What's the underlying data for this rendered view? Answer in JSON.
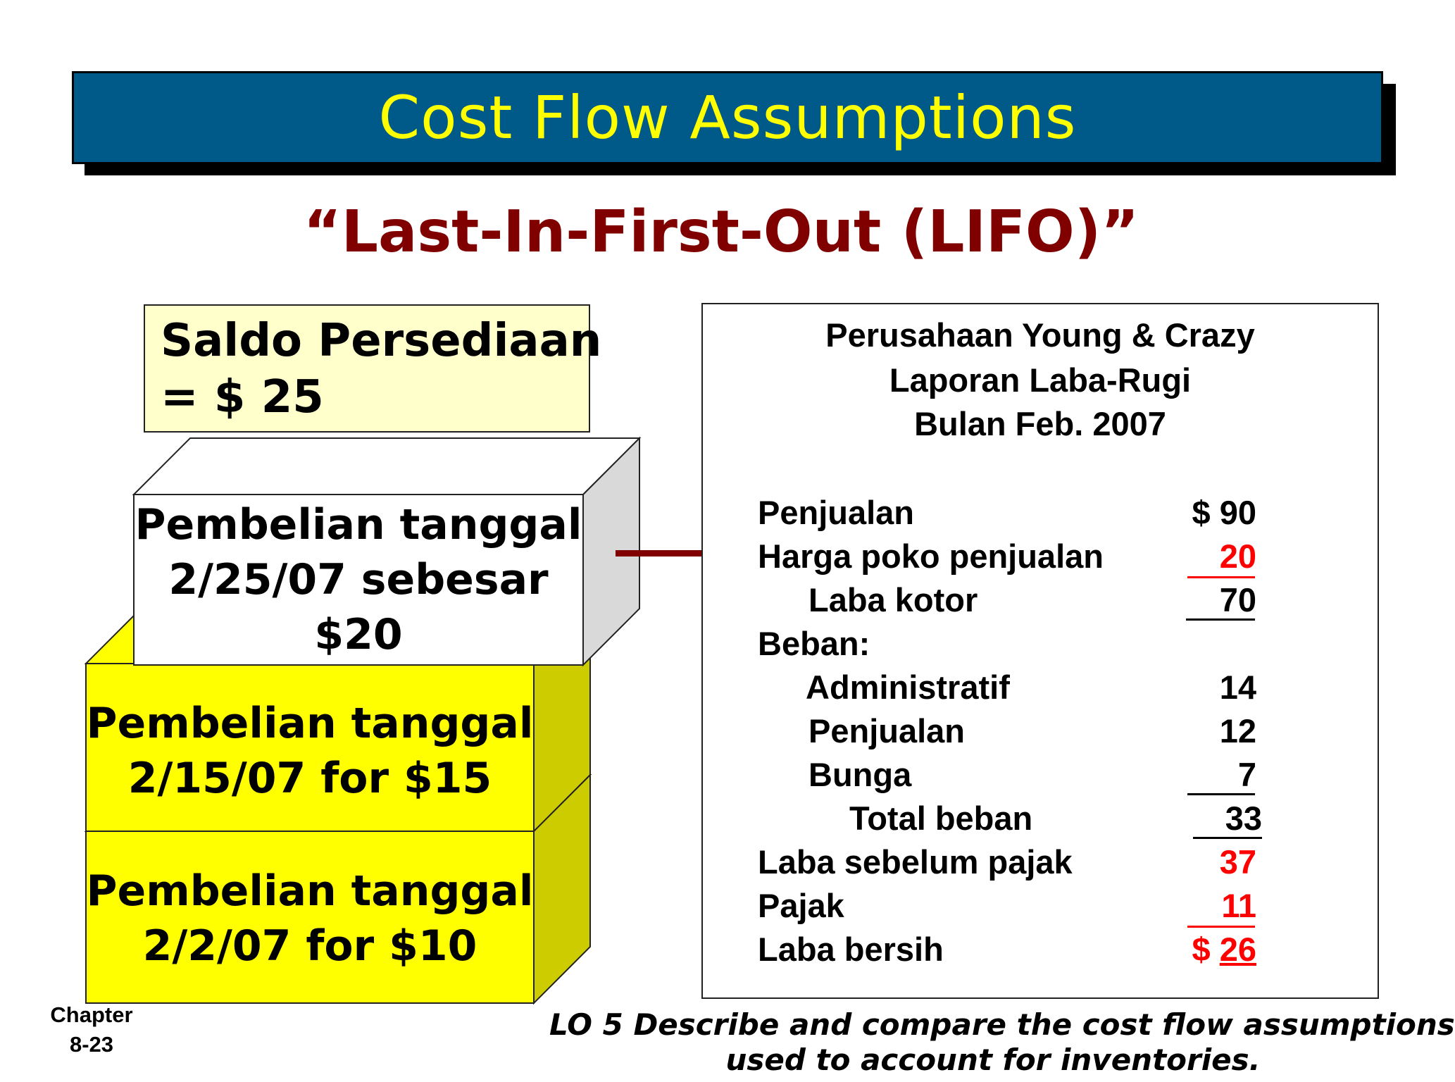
{
  "title": "Cost Flow Assumptions",
  "subtitle": "“Last-In-First-Out (LIFO)”",
  "inventory_balance": {
    "line1": "Saldo Persediaan",
    "line2": "= $ 25"
  },
  "purchases": [
    {
      "line1": "Pembelian tanggal",
      "line2": "2/25/07 sebesar",
      "line3": "$20"
    },
    {
      "line1": "Pembelian tanggal",
      "line2": "2/15/07 for $15"
    },
    {
      "line1": "Pembelian tanggal",
      "line2": "2/2/07 for $10"
    }
  ],
  "colors": {
    "banner": "#005a89",
    "banner_text": "#ffff00",
    "subtitle": "#800000",
    "balance_box": "#ffffcc",
    "block_front": "#ffff00",
    "block_side": "#cccc00",
    "top_block_side": "#d9d9d9",
    "highlight": "#ff0000"
  },
  "statement": {
    "company": "Perusahaan Young & Crazy",
    "report": "Laporan Laba-Rugi",
    "period": "Bulan Feb.  2007",
    "rows": [
      {
        "label": "Penjualan",
        "value": "$ 90"
      },
      {
        "label": "Harga poko penjualan",
        "value": "20"
      },
      {
        "label": "Laba kotor",
        "value": "70"
      },
      {
        "label": "Beban:",
        "value": ""
      },
      {
        "label": "Administratif",
        "value": "14"
      },
      {
        "label": "Penjualan",
        "value": "12"
      },
      {
        "label": "Bunga",
        "value": "7"
      },
      {
        "label": "Total beban",
        "value": "33"
      },
      {
        "label": "Laba sebelum pajak",
        "value": "37"
      },
      {
        "label": "Pajak",
        "value": "11"
      },
      {
        "label": "Laba bersih",
        "value_prefix": "$",
        "value": "26"
      }
    ]
  },
  "footer": {
    "chapter": "Chapter",
    "page": "8-23",
    "lo_line1": "LO 5 Describe and compare the cost flow assumptions",
    "lo_line2": "used to account for inventories."
  }
}
